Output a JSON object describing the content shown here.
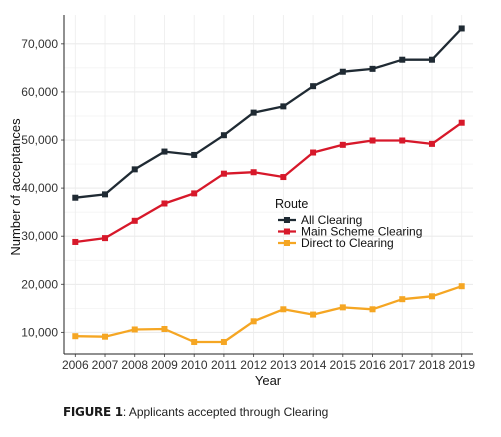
{
  "caption": {
    "figure_label": "FIGURE 1",
    "text": ": Applicants accepted through Clearing"
  },
  "chart_data": {
    "type": "line",
    "xlabel": "Year",
    "ylabel": "Number of acceptances",
    "x": [
      2006,
      2007,
      2008,
      2009,
      2010,
      2011,
      2012,
      2013,
      2014,
      2015,
      2016,
      2017,
      2018,
      2019
    ],
    "x_tick_labels": [
      "2006",
      "2007",
      "2008",
      "2009",
      "2010",
      "2011",
      "2012",
      "2013",
      "2014",
      "2015",
      "2016",
      "2017",
      "2018",
      "2019"
    ],
    "ylim": [
      5500,
      76000
    ],
    "y_ticks": [
      10000,
      20000,
      30000,
      40000,
      50000,
      60000,
      70000
    ],
    "y_tick_labels": [
      "10,000",
      "20,000",
      "30,000",
      "40,000",
      "50,000",
      "60,000",
      "70,000"
    ],
    "grid": true,
    "legend": {
      "title": "Route",
      "placement": "center-right"
    },
    "series": [
      {
        "name": "All Clearing",
        "color": "#1f2a33",
        "values": [
          38000,
          38700,
          43900,
          47600,
          46900,
          51000,
          55700,
          57000,
          61200,
          64200,
          64800,
          66700,
          66700,
          73200
        ]
      },
      {
        "name": "Main Scheme Clearing",
        "color": "#d7182a",
        "values": [
          28800,
          29600,
          33200,
          36800,
          38900,
          43000,
          43300,
          42300,
          47400,
          49000,
          49900,
          49900,
          49200,
          53600
        ]
      },
      {
        "name": "Direct to Clearing",
        "color": "#f5a623",
        "values": [
          9200,
          9100,
          10600,
          10700,
          8000,
          8000,
          12300,
          14800,
          13700,
          15200,
          14800,
          16900,
          17500,
          19600
        ]
      }
    ]
  }
}
